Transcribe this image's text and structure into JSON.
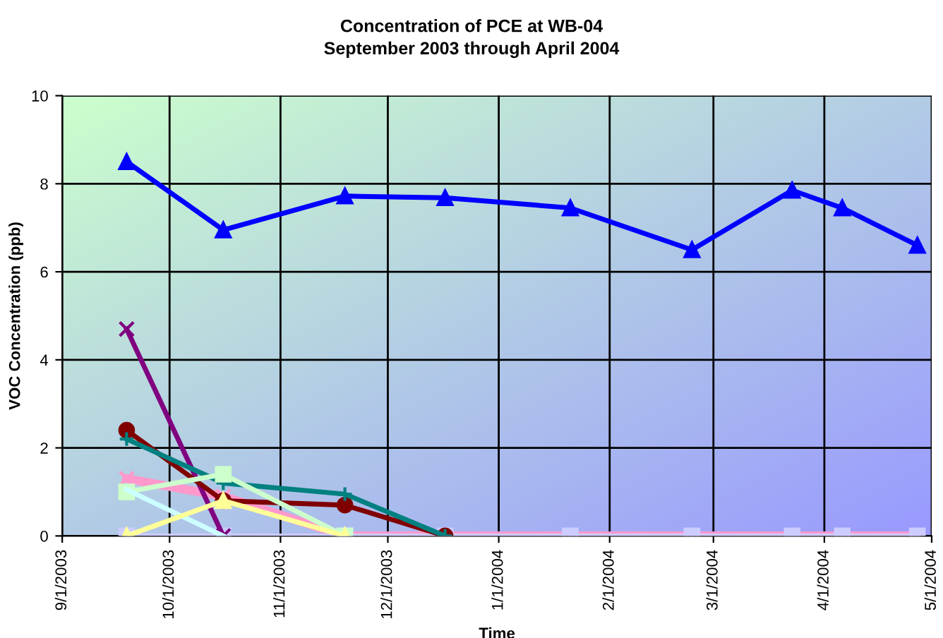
{
  "chart_data": {
    "type": "line",
    "title": "Concentration of PCE at WB-04",
    "subtitle": "September 2003 through April 2004",
    "xlabel": "Time",
    "ylabel": "VOC Concentration (ppb)",
    "x": [
      "2003-09-19",
      "2003-10-16",
      "2003-11-19",
      "2003-12-17",
      "2004-01-21",
      "2004-02-24",
      "2004-03-23",
      "2004-04-06",
      "2004-04-27"
    ],
    "xlim": [
      "2003-09-01",
      "2004-05-01"
    ],
    "xticks": [
      {
        "value": "2003-09-01",
        "label": "9/1/2003"
      },
      {
        "value": "2003-10-01",
        "label": "10/1/2003"
      },
      {
        "value": "2003-11-01",
        "label": "11/1/2003"
      },
      {
        "value": "2003-12-01",
        "label": "12/1/2003"
      },
      {
        "value": "2004-01-01",
        "label": "1/1/2004"
      },
      {
        "value": "2004-02-01",
        "label": "2/1/2004"
      },
      {
        "value": "2004-03-01",
        "label": "3/1/2004"
      },
      {
        "value": "2004-04-01",
        "label": "4/1/2004"
      },
      {
        "value": "2004-05-01",
        "label": "5/1/2004"
      }
    ],
    "ylim": [
      0,
      10
    ],
    "yticks": [
      0,
      2,
      4,
      6,
      8,
      10
    ],
    "grid": true,
    "legend": false,
    "series": [
      {
        "color": "#ff99cc",
        "marker": "cross",
        "values": [
          1.3,
          0.9,
          0,
          0,
          0,
          0,
          0,
          0,
          0
        ]
      },
      {
        "color": "#ccccff",
        "marker": "square",
        "values": [
          0,
          0,
          0,
          0,
          0,
          0,
          0,
          0,
          0
        ]
      },
      {
        "color": "#ffff99",
        "marker": "triangle",
        "values": [
          0,
          0.8,
          0,
          null,
          null,
          null,
          null,
          null,
          null
        ]
      },
      {
        "color": "#ccffff",
        "marker": "none",
        "values": [
          1.05,
          0,
          null,
          null,
          null,
          null,
          null,
          null,
          null
        ]
      },
      {
        "color": "#ccffcc",
        "marker": "square",
        "values": [
          1.0,
          1.4,
          0,
          null,
          null,
          null,
          null,
          null,
          null
        ]
      },
      {
        "color": "#008080",
        "marker": "plus",
        "values": [
          2.2,
          1.2,
          0.95,
          0,
          null,
          null,
          null,
          null,
          null
        ]
      },
      {
        "color": "#800000",
        "marker": "circle",
        "values": [
          2.4,
          0.8,
          0.7,
          0,
          null,
          null,
          null,
          null,
          null
        ]
      },
      {
        "color": "#800080",
        "marker": "cross",
        "values": [
          4.7,
          0,
          null,
          null,
          null,
          null,
          null,
          null,
          null
        ]
      },
      {
        "color": "#0000ff",
        "marker": "triangle",
        "values": [
          8.5,
          6.95,
          7.72,
          7.68,
          7.45,
          6.5,
          7.85,
          7.45,
          6.6
        ]
      }
    ]
  }
}
